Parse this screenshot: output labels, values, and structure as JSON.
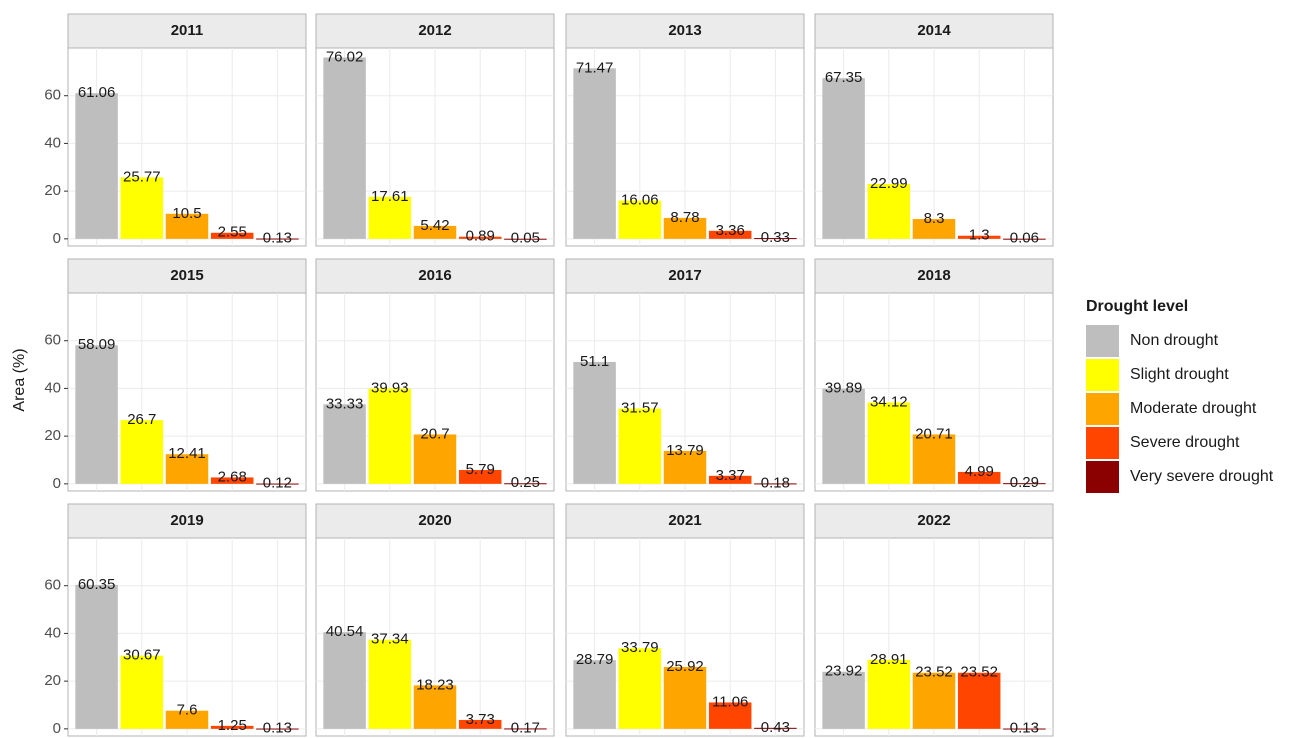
{
  "ylabel": "Area (%)",
  "legend": {
    "title": "Drought level",
    "items": [
      {
        "name": "Non drought",
        "color": "#bebebe"
      },
      {
        "name": "Slight drought",
        "color": "#ffff00"
      },
      {
        "name": "Moderate drought",
        "color": "#ffa500"
      },
      {
        "name": "Severe drought",
        "color": "#ff4500"
      },
      {
        "name": "Very severe drought",
        "color": "#8b0000"
      }
    ]
  },
  "chart_data": [
    {
      "type": "bar",
      "title": "2011",
      "values": [
        61.06,
        25.77,
        10.5,
        2.55,
        0.13
      ],
      "ylim": [
        -3,
        80
      ],
      "yticks": [
        0,
        20,
        40,
        60
      ],
      "grid": true
    },
    {
      "type": "bar",
      "title": "2012",
      "values": [
        76.02,
        17.61,
        5.42,
        0.89,
        0.05
      ],
      "ylim": [
        -3,
        80
      ],
      "yticks": [
        0,
        20,
        40,
        60
      ],
      "grid": true
    },
    {
      "type": "bar",
      "title": "2013",
      "values": [
        71.47,
        16.06,
        8.78,
        3.36,
        0.33
      ],
      "ylim": [
        -3,
        80
      ],
      "yticks": [
        0,
        20,
        40,
        60
      ],
      "grid": true
    },
    {
      "type": "bar",
      "title": "2014",
      "values": [
        67.35,
        22.99,
        8.3,
        1.3,
        0.06
      ],
      "ylim": [
        -3,
        80
      ],
      "yticks": [
        0,
        20,
        40,
        60
      ],
      "grid": true
    },
    {
      "type": "bar",
      "title": "2015",
      "values": [
        58.09,
        26.7,
        12.41,
        2.68,
        0.12
      ],
      "ylim": [
        -3,
        80
      ],
      "yticks": [
        0,
        20,
        40,
        60
      ],
      "grid": true
    },
    {
      "type": "bar",
      "title": "2016",
      "values": [
        33.33,
        39.93,
        20.7,
        5.79,
        0.25
      ],
      "ylim": [
        -3,
        80
      ],
      "yticks": [
        0,
        20,
        40,
        60
      ],
      "grid": true
    },
    {
      "type": "bar",
      "title": "2017",
      "values": [
        51.1,
        31.57,
        13.79,
        3.37,
        0.18
      ],
      "ylim": [
        -3,
        80
      ],
      "yticks": [
        0,
        20,
        40,
        60
      ],
      "grid": true
    },
    {
      "type": "bar",
      "title": "2018",
      "values": [
        39.89,
        34.12,
        20.71,
        4.99,
        0.29
      ],
      "ylim": [
        -3,
        80
      ],
      "yticks": [
        0,
        20,
        40,
        60
      ],
      "grid": true
    },
    {
      "type": "bar",
      "title": "2019",
      "values": [
        60.35,
        30.67,
        7.6,
        1.25,
        0.13
      ],
      "ylim": [
        -3,
        80
      ],
      "yticks": [
        0,
        20,
        40,
        60
      ],
      "grid": true
    },
    {
      "type": "bar",
      "title": "2020",
      "values": [
        40.54,
        37.34,
        18.23,
        3.73,
        0.17
      ],
      "ylim": [
        -3,
        80
      ],
      "yticks": [
        0,
        20,
        40,
        60
      ],
      "grid": true
    },
    {
      "type": "bar",
      "title": "2021",
      "values": [
        28.79,
        33.79,
        25.92,
        11.06,
        0.43
      ],
      "ylim": [
        -3,
        80
      ],
      "yticks": [
        0,
        20,
        40,
        60
      ],
      "grid": true
    },
    {
      "type": "bar",
      "title": "2022",
      "values": [
        23.92,
        28.91,
        23.52,
        23.52,
        0.13
      ],
      "ylim": [
        -3,
        80
      ],
      "yticks": [
        0,
        20,
        40,
        60
      ],
      "grid": true
    }
  ]
}
